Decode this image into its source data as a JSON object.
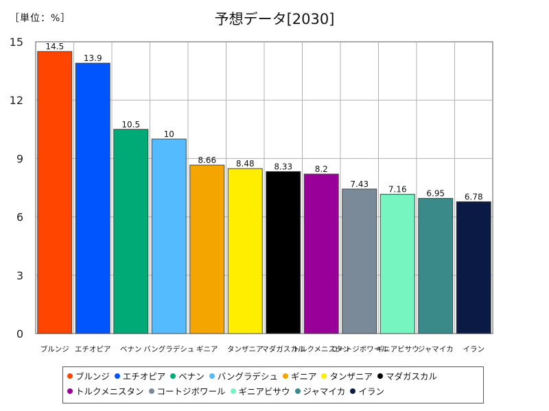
{
  "unit_label": "［単位：%］",
  "chart_data": {
    "type": "bar",
    "title": "予想データ[2030]",
    "categories": [
      "ブルンジ",
      "エチオピア",
      "ベナン",
      "バングラデシュ",
      "ギニア",
      "タンザニア",
      "マダガスカル",
      "トルクメニスタン",
      "コートジボワール",
      "ギニアビサウ",
      "ジャマイカ",
      "イラン"
    ],
    "values": [
      14.5,
      13.9,
      10.5,
      10,
      8.66,
      8.48,
      8.33,
      8.2,
      7.43,
      7.16,
      6.95,
      6.78
    ],
    "value_labels": [
      "14.5",
      "13.9",
      "10.5",
      "10",
      "8.66",
      "8.48",
      "8.33",
      "8.2",
      "7.43",
      "7.16",
      "6.95",
      "6.78"
    ],
    "colors": [
      "#ff4500",
      "#0055ff",
      "#00aa77",
      "#55bbff",
      "#f5a500",
      "#ffee00",
      "#000000",
      "#990099",
      "#7a8a99",
      "#77f5c0",
      "#3a8a8a",
      "#0a1a44"
    ],
    "ylim": [
      0,
      15
    ],
    "yticks": [
      "0",
      "3",
      "6",
      "9",
      "12",
      "15"
    ],
    "xlabel": "",
    "ylabel": "",
    "grid": true,
    "legend_position": "bottom"
  }
}
